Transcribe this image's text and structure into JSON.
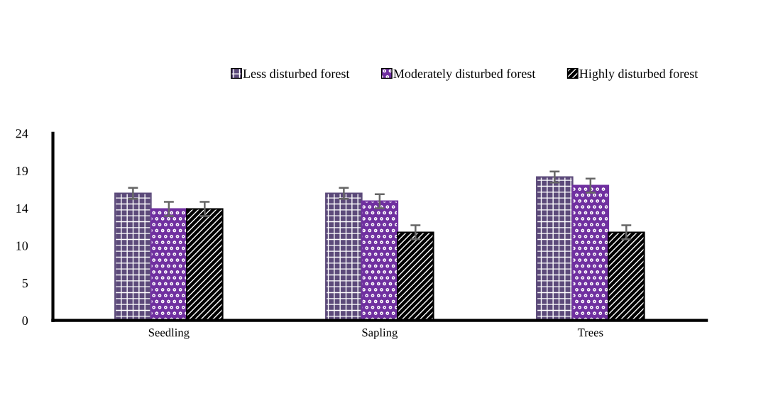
{
  "chart_data": {
    "type": "bar",
    "categories": [
      "Seedling",
      "Sapling",
      "Trees"
    ],
    "series": [
      {
        "name": "Less disturbed forest",
        "color": "#5c4a7a",
        "values": [
          16.3,
          16.3,
          18.4
        ],
        "errors": [
          0.7,
          0.7,
          0.7
        ]
      },
      {
        "name": "Moderately disturbed forest",
        "color": "#7030a0",
        "values": [
          14.3,
          15.3,
          17.3
        ],
        "errors": [
          0.9,
          0.9,
          0.9
        ]
      },
      {
        "name": "Highly disturbed forest",
        "color": "#000000",
        "values": [
          14.3,
          11.3,
          11.3
        ],
        "errors": [
          0.9,
          0.9,
          0.9
        ]
      }
    ],
    "ylim": [
      0,
      24
    ],
    "yticks": [
      0,
      {
        "value": 4.8,
        "label": "5"
      },
      {
        "value": 9.6,
        "label": "10"
      },
      {
        "value": 14.4,
        "label": "14"
      },
      {
        "value": 19.2,
        "label": "19"
      },
      24
    ],
    "grid": false,
    "legend": "top"
  }
}
